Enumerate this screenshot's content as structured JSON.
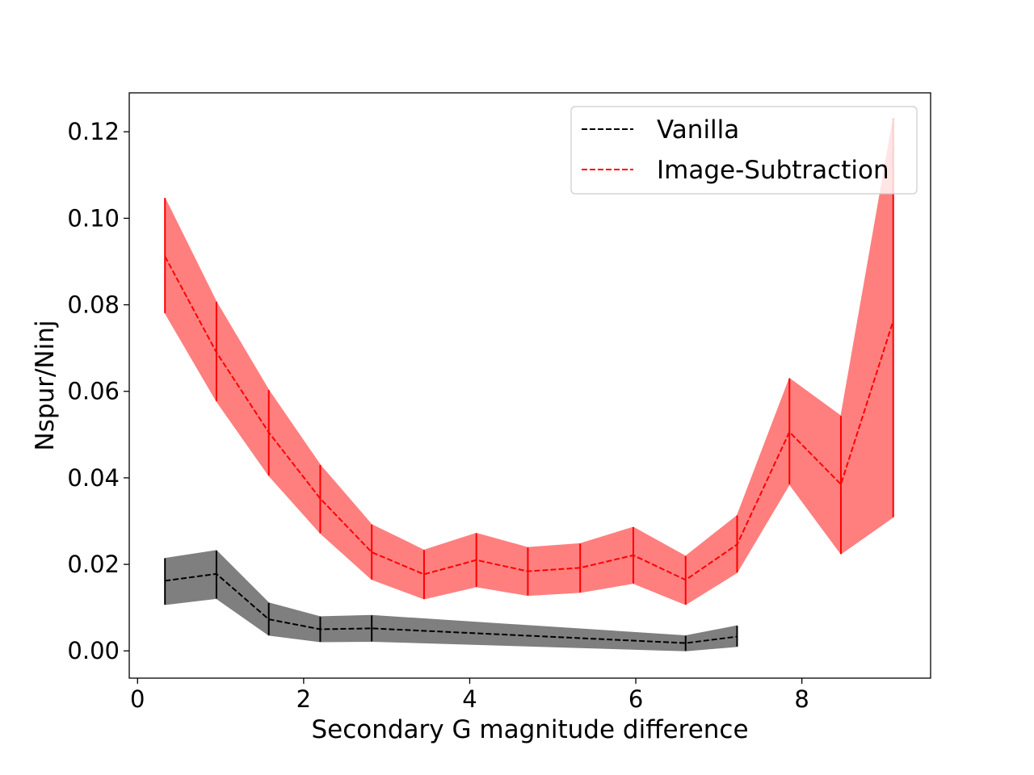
{
  "chart_data": {
    "type": "line",
    "title": "",
    "xlabel": "Secondary G magnitude difference",
    "ylabel": "Nspur/Ninj",
    "xlim": [
      -0.1,
      9.55
    ],
    "ylim": [
      -0.0063,
      0.129
    ],
    "xticks": [
      0,
      2,
      4,
      6,
      8
    ],
    "yticks": [
      0.0,
      0.02,
      0.04,
      0.06,
      0.08,
      0.1,
      0.12
    ],
    "ytick_labels": [
      "0.00",
      "0.02",
      "0.04",
      "0.06",
      "0.08",
      "0.10",
      "0.12"
    ],
    "legend_position": "upper right",
    "series": [
      {
        "name": "Vanilla",
        "color": "#000000",
        "band_color": "#7f7f7f",
        "line_style": "dashed",
        "x": [
          0.33,
          0.95,
          1.58,
          2.2,
          2.82,
          6.6,
          7.22
        ],
        "y": [
          0.0162,
          0.0178,
          0.0073,
          0.005,
          0.0052,
          0.0018,
          0.0033
        ],
        "lower": [
          0.0107,
          0.0121,
          0.0036,
          0.0021,
          0.0022,
          0.0,
          0.001
        ],
        "upper": [
          0.0214,
          0.0232,
          0.0111,
          0.0079,
          0.0082,
          0.0035,
          0.0058
        ]
      },
      {
        "name": "Image-Subtraction",
        "color": "#ff0000",
        "band_color": "#ff7f7f",
        "line_style": "dashed",
        "x": [
          0.33,
          0.95,
          1.58,
          2.2,
          2.82,
          3.45,
          4.08,
          4.7,
          5.33,
          5.97,
          6.6,
          7.22,
          7.85,
          8.47,
          9.1
        ],
        "y": [
          0.0912,
          0.069,
          0.0505,
          0.0352,
          0.0228,
          0.0177,
          0.021,
          0.0184,
          0.0192,
          0.0221,
          0.0164,
          0.0246,
          0.0506,
          0.0385,
          0.0763
        ],
        "lower": [
          0.0781,
          0.0577,
          0.0405,
          0.0272,
          0.0165,
          0.012,
          0.0148,
          0.0128,
          0.0135,
          0.0156,
          0.0107,
          0.0181,
          0.0385,
          0.0224,
          0.0309
        ],
        "upper": [
          0.1047,
          0.0807,
          0.0603,
          0.043,
          0.0292,
          0.0233,
          0.0272,
          0.0239,
          0.0248,
          0.0286,
          0.0219,
          0.0313,
          0.063,
          0.0543,
          0.1232
        ]
      }
    ]
  }
}
